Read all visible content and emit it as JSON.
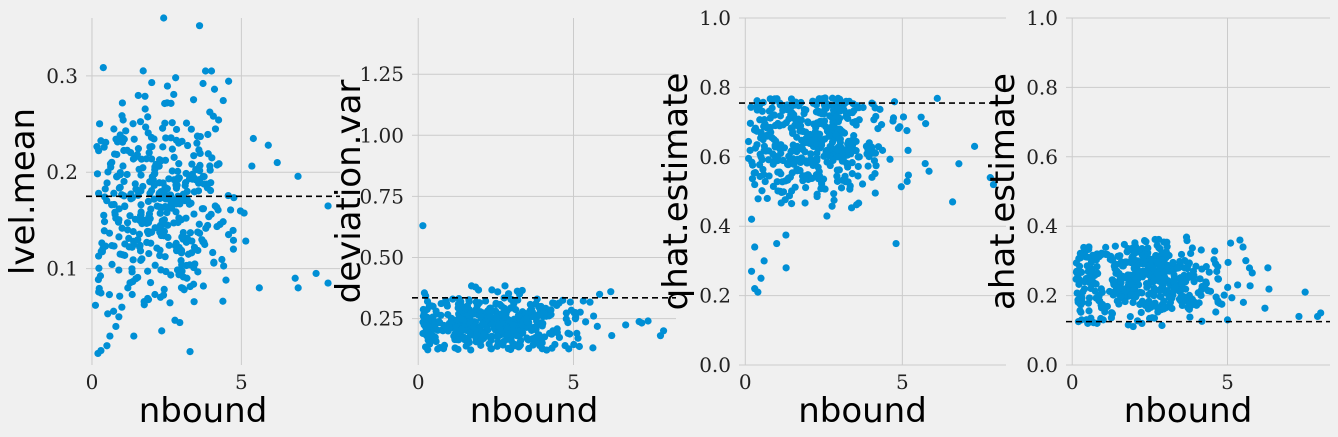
{
  "chart_data": [
    {
      "type": "scatter",
      "xlabel": "nbound",
      "ylabel": "lvel.mean",
      "xlim": [
        -0.2,
        8.3
      ],
      "ylim": [
        0.0,
        0.36
      ],
      "xticks": [
        0,
        5
      ],
      "xtick_labels": [
        "0",
        "5"
      ],
      "yticks": [
        0.1,
        0.2,
        0.3
      ],
      "ytick_labels": [
        "0.1",
        "0.2",
        "0.3"
      ],
      "hline": 0.175,
      "grid": true,
      "point_color": "#008fd5",
      "cluster": {
        "n": 420,
        "x_mode": 2.2,
        "x_spread": 1.1,
        "x_max": 8.2,
        "y_center": 0.165,
        "y_spread": 0.055,
        "y_min": 0.01,
        "y_max": 0.31
      },
      "points": [
        {
          "x": 0.2,
          "y": 0.012
        },
        {
          "x": 0.3,
          "y": 0.015
        },
        {
          "x": 0.5,
          "y": 0.02
        },
        {
          "x": 0.6,
          "y": 0.03
        },
        {
          "x": 0.8,
          "y": 0.04
        },
        {
          "x": 0.9,
          "y": 0.05
        },
        {
          "x": 1.0,
          "y": 0.06
        },
        {
          "x": 1.2,
          "y": 0.08
        },
        {
          "x": 1.4,
          "y": 0.03
        },
        {
          "x": 2.4,
          "y": 0.36
        },
        {
          "x": 3.6,
          "y": 0.352
        },
        {
          "x": 3.8,
          "y": 0.305
        },
        {
          "x": 4.0,
          "y": 0.305
        },
        {
          "x": 2.8,
          "y": 0.298
        },
        {
          "x": 2.0,
          "y": 0.293
        },
        {
          "x": 5.4,
          "y": 0.235
        },
        {
          "x": 5.9,
          "y": 0.228
        },
        {
          "x": 6.2,
          "y": 0.21
        },
        {
          "x": 6.8,
          "y": 0.09
        },
        {
          "x": 6.9,
          "y": 0.08
        },
        {
          "x": 7.5,
          "y": 0.095
        },
        {
          "x": 7.9,
          "y": 0.085
        },
        {
          "x": 7.9,
          "y": 0.165
        },
        {
          "x": 5.6,
          "y": 0.08
        }
      ]
    },
    {
      "type": "scatter",
      "xlabel": "nbound",
      "ylabel": "deviation.var",
      "xlim": [
        -0.2,
        8.3
      ],
      "ylim": [
        0.06,
        1.48
      ],
      "xticks": [
        0,
        5
      ],
      "xtick_labels": [
        "0",
        "5"
      ],
      "yticks": [
        0.25,
        0.5,
        0.75,
        1.0,
        1.25
      ],
      "ytick_labels": [
        "0.25",
        "0.50",
        "0.75",
        "1.00",
        "1.25"
      ],
      "hline": 0.335,
      "grid": true,
      "point_color": "#008fd5",
      "cluster": {
        "n": 460,
        "x_mode": 2.6,
        "x_spread": 1.2,
        "x_max": 8.2,
        "y_center": 0.23,
        "y_spread": 0.055,
        "y_min": 0.12,
        "y_max": 0.39
      },
      "points": [
        {
          "x": 0.15,
          "y": 0.63
        },
        {
          "x": 0.2,
          "y": 0.355
        },
        {
          "x": 0.3,
          "y": 0.32
        },
        {
          "x": 0.5,
          "y": 0.22
        },
        {
          "x": 0.4,
          "y": 0.17
        },
        {
          "x": 7.8,
          "y": 0.18
        },
        {
          "x": 7.9,
          "y": 0.2
        },
        {
          "x": 7.4,
          "y": 0.24
        },
        {
          "x": 6.2,
          "y": 0.36
        }
      ]
    },
    {
      "type": "scatter",
      "xlabel": "nbound",
      "ylabel": "qhat.estimate",
      "xlim": [
        -0.2,
        8.3
      ],
      "ylim": [
        0.0,
        1.0
      ],
      "xticks": [
        0,
        5
      ],
      "xtick_labels": [
        "0",
        "5"
      ],
      "yticks": [
        0.0,
        0.2,
        0.4,
        0.6,
        0.8,
        1.0
      ],
      "ytick_labels": [
        "0.0",
        "0.2",
        "0.4",
        "0.6",
        "0.8",
        "1.0"
      ],
      "hline": 0.755,
      "grid": true,
      "point_color": "#008fd5",
      "cluster": {
        "n": 440,
        "x_mode": 2.3,
        "x_spread": 1.1,
        "x_max": 8.2,
        "y_center": 0.65,
        "y_spread": 0.09,
        "y_min": 0.3,
        "y_max": 0.77
      },
      "points": [
        {
          "x": 0.2,
          "y": 0.27
        },
        {
          "x": 0.3,
          "y": 0.22
        },
        {
          "x": 0.4,
          "y": 0.21
        },
        {
          "x": 0.5,
          "y": 0.25
        },
        {
          "x": 0.6,
          "y": 0.3
        },
        {
          "x": 0.3,
          "y": 0.34
        },
        {
          "x": 0.2,
          "y": 0.42
        },
        {
          "x": 0.3,
          "y": 0.52
        },
        {
          "x": 0.5,
          "y": 0.6
        },
        {
          "x": 0.7,
          "y": 0.48
        },
        {
          "x": 1.0,
          "y": 0.35
        },
        {
          "x": 1.3,
          "y": 0.28
        },
        {
          "x": 4.8,
          "y": 0.35
        },
        {
          "x": 6.6,
          "y": 0.47
        },
        {
          "x": 7.3,
          "y": 0.63
        },
        {
          "x": 7.8,
          "y": 0.54
        },
        {
          "x": 7.9,
          "y": 0.52
        },
        {
          "x": 6.8,
          "y": 0.58
        }
      ]
    },
    {
      "type": "scatter",
      "xlabel": "nbound",
      "ylabel": "ahat.estimate",
      "xlim": [
        -0.2,
        8.3
      ],
      "ylim": [
        0.0,
        1.0
      ],
      "xticks": [
        0,
        5
      ],
      "xtick_labels": [
        "0",
        "5"
      ],
      "yticks": [
        0.0,
        0.2,
        0.4,
        0.6,
        0.8,
        1.0
      ],
      "ytick_labels": [
        "0.0",
        "0.2",
        "0.4",
        "0.6",
        "0.8",
        "1.0"
      ],
      "hline": 0.125,
      "grid": true,
      "point_color": "#008fd5",
      "cluster": {
        "n": 460,
        "x_mode": 2.4,
        "x_spread": 1.15,
        "x_max": 8.2,
        "y_center": 0.25,
        "y_spread": 0.055,
        "y_min": 0.11,
        "y_max": 0.39
      },
      "points": [
        {
          "x": 0.2,
          "y": 0.125
        },
        {
          "x": 0.3,
          "y": 0.13
        },
        {
          "x": 0.5,
          "y": 0.12
        },
        {
          "x": 0.6,
          "y": 0.135
        },
        {
          "x": 0.8,
          "y": 0.12
        },
        {
          "x": 1.0,
          "y": 0.13
        },
        {
          "x": 0.4,
          "y": 0.24
        },
        {
          "x": 0.6,
          "y": 0.31
        },
        {
          "x": 0.8,
          "y": 0.32
        },
        {
          "x": 5.0,
          "y": 0.13
        },
        {
          "x": 7.5,
          "y": 0.21
        },
        {
          "x": 7.9,
          "y": 0.14
        },
        {
          "x": 8.0,
          "y": 0.15
        },
        {
          "x": 7.3,
          "y": 0.14
        },
        {
          "x": 5.4,
          "y": 0.36
        },
        {
          "x": 5.5,
          "y": 0.34
        },
        {
          "x": 6.3,
          "y": 0.28
        }
      ]
    }
  ]
}
